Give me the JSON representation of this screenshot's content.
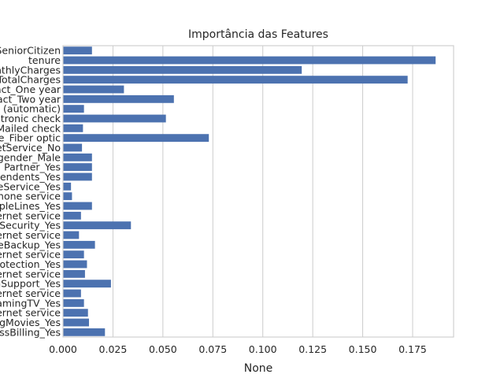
{
  "chart_data": {
    "type": "bar",
    "orientation": "horizontal",
    "title": "Importância das Features",
    "xlabel": "None",
    "ylabel": "",
    "xlim": [
      0,
      0.1955
    ],
    "xticks": [
      0.0,
      0.025,
      0.05,
      0.075,
      0.1,
      0.125,
      0.15,
      0.175
    ],
    "xtick_labels": [
      "0.000",
      "0.025",
      "0.050",
      "0.075",
      "0.100",
      "0.125",
      "0.150",
      "0.175"
    ],
    "grid": "vertical",
    "color": "#4c72b0",
    "categories": [
      "SeniorCitizen",
      "tenure",
      "MonthlyCharges",
      "TotalCharges",
      "Contract_One year",
      "Contract_Two year",
      "PaymentMethod_Credit card (automatic)",
      "PaymentMethod_Electronic check",
      "PaymentMethod_Mailed check",
      "InternetService_Fiber optic",
      "InternetService_No",
      "gender_Male",
      "Partner_Yes",
      "Dependents_Yes",
      "PhoneService_Yes",
      "MultipleLines_No phone service",
      "MultipleLines_Yes",
      "OnlineSecurity_No internet service",
      "OnlineSecurity_Yes",
      "OnlineBackup_No internet service",
      "OnlineBackup_Yes",
      "DeviceProtection_No internet service",
      "DeviceProtection_Yes",
      "TechSupport_No internet service",
      "TechSupport_Yes",
      "StreamingTV_No internet service",
      "StreamingTV_Yes",
      "StreamingMovies_No internet service",
      "StreamingMovies_Yes",
      "PaperlessBilling_Yes"
    ],
    "values": [
      0.0145,
      0.1865,
      0.1195,
      0.1725,
      0.0305,
      0.0555,
      0.0105,
      0.0515,
      0.01,
      0.073,
      0.0095,
      0.0145,
      0.0145,
      0.0145,
      0.004,
      0.0045,
      0.0145,
      0.009,
      0.034,
      0.008,
      0.016,
      0.0105,
      0.012,
      0.011,
      0.024,
      0.009,
      0.0105,
      0.0125,
      0.013,
      0.021
    ]
  }
}
